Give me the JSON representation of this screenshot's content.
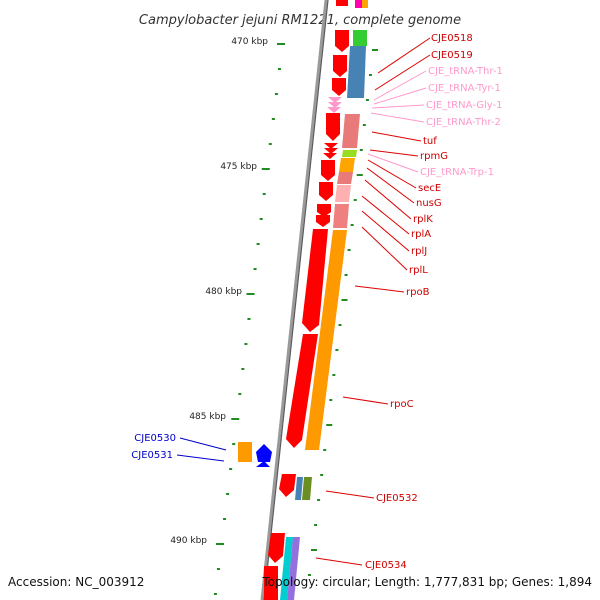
{
  "title": "Campylobacter jejuni RM1221, complete genome",
  "accession": "Accession: NC_003912",
  "topology": "Topology: circular; Length: 1,777,831 bp; Genes: 1,894",
  "colors": {
    "cds": "#ff0000",
    "trna": "#ff99cc",
    "backbone": "#888888",
    "ruler": "#228b22",
    "label_cds": "#cc0000",
    "label_trna": "#ff99cc",
    "label_other": "#0000cc"
  },
  "scale": {
    "ticks": [
      {
        "label": "470 kbp"
      },
      {
        "label": "475 kbp"
      },
      {
        "label": "480 kbp"
      },
      {
        "label": "485 kbp"
      },
      {
        "label": "490 kbp"
      }
    ]
  },
  "gene_labels": [
    {
      "name": "CJE0518",
      "kind": "cds"
    },
    {
      "name": "CJE0519",
      "kind": "cds"
    },
    {
      "name": "CJE_tRNA-Thr-1",
      "kind": "trna"
    },
    {
      "name": "CJE_tRNA-Tyr-1",
      "kind": "trna"
    },
    {
      "name": "CJE_tRNA-Gly-1",
      "kind": "trna"
    },
    {
      "name": "CJE_tRNA-Thr-2",
      "kind": "trna"
    },
    {
      "name": "tuf",
      "kind": "cds"
    },
    {
      "name": "rpmG",
      "kind": "cds"
    },
    {
      "name": "CJE_tRNA-Trp-1",
      "kind": "trna"
    },
    {
      "name": "secE",
      "kind": "cds"
    },
    {
      "name": "nusG",
      "kind": "cds"
    },
    {
      "name": "rplK",
      "kind": "cds"
    },
    {
      "name": "rplA",
      "kind": "cds"
    },
    {
      "name": "rplJ",
      "kind": "cds"
    },
    {
      "name": "rplL",
      "kind": "cds"
    },
    {
      "name": "rpoB",
      "kind": "cds"
    },
    {
      "name": "rpoC",
      "kind": "cds"
    },
    {
      "name": "CJE0532",
      "kind": "cds"
    },
    {
      "name": "CJE0534",
      "kind": "cds"
    },
    {
      "name": "CJE0530",
      "kind": "other"
    },
    {
      "name": "CJE0531",
      "kind": "other"
    }
  ]
}
